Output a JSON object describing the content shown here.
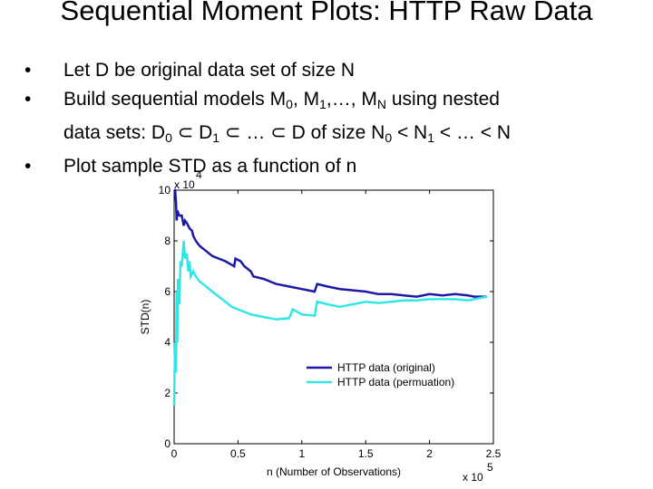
{
  "slide": {
    "title": "Sequential Moment Plots: HTTP Raw Data",
    "bullets": [
      {
        "segments": [
          {
            "t": "Let D be original data set of size N"
          }
        ]
      },
      {
        "segments": [
          {
            "t": "Build sequential models M"
          },
          {
            "t": "0",
            "sub": true
          },
          {
            "t": ", M"
          },
          {
            "t": "1",
            "sub": true
          },
          {
            "t": ",…, M"
          },
          {
            "t": "N",
            "sub": true
          },
          {
            "t": " using nested"
          }
        ]
      },
      {
        "indent": true,
        "segments": [
          {
            "t": "data sets: D"
          },
          {
            "t": "0",
            "sub": true
          },
          {
            "t": " ⊂ D"
          },
          {
            "t": "1",
            "sub": true
          },
          {
            "t": " ⊂ … ⊂ D of size N"
          },
          {
            "t": "0",
            "sub": true
          },
          {
            "t": " < N"
          },
          {
            "t": "1",
            "sub": true
          },
          {
            "t": " < … < N"
          }
        ]
      },
      {
        "segments": [
          {
            "t": "Plot sample STD as a function of n"
          }
        ]
      }
    ]
  },
  "chart_data": {
    "type": "line",
    "xlabel": "n (Number of Observations)",
    "ylabel": "STD(n)",
    "xlim": [
      0,
      250000
    ],
    "ylim": [
      0,
      100000
    ],
    "x_multiplier_label": "x 10",
    "x_multiplier_exp": "5",
    "y_multiplier_label": "x 10",
    "y_multiplier_exp": "4",
    "xticks": [
      {
        "v": 0,
        "label": "0"
      },
      {
        "v": 50000,
        "label": "0.5"
      },
      {
        "v": 100000,
        "label": "1"
      },
      {
        "v": 150000,
        "label": "1.5"
      },
      {
        "v": 200000,
        "label": "2"
      },
      {
        "v": 250000,
        "label": "2.5"
      }
    ],
    "yticks": [
      {
        "v": 0,
        "label": "0"
      },
      {
        "v": 20000,
        "label": "2"
      },
      {
        "v": 40000,
        "label": "4"
      },
      {
        "v": 60000,
        "label": "6"
      },
      {
        "v": 80000,
        "label": "8"
      },
      {
        "v": 100000,
        "label": "10"
      }
    ],
    "legend_position": "lower-right",
    "series": [
      {
        "name": "HTTP data (original)",
        "color": "#1a1aa6",
        "x": [
          0,
          800,
          1500,
          2000,
          2500,
          4000,
          6000,
          7500,
          8500,
          10000,
          12000,
          14000,
          15000,
          17000,
          20000,
          25000,
          30000,
          40000,
          47000,
          48000,
          52000,
          55000,
          60000,
          62000,
          70000,
          80000,
          90000,
          100000,
          110000,
          112000,
          120000,
          130000,
          140000,
          150000,
          160000,
          170000,
          180000,
          190000,
          200000,
          210000,
          220000,
          230000,
          235000,
          240000,
          245000
        ],
        "y": [
          100000,
          100000,
          95000,
          88000,
          92000,
          90000,
          90000,
          86000,
          88000,
          87000,
          85000,
          84000,
          82000,
          80000,
          78000,
          76000,
          74000,
          72000,
          70000,
          73000,
          72000,
          70000,
          68000,
          66000,
          65000,
          63000,
          62000,
          61000,
          60000,
          63000,
          62000,
          61000,
          60500,
          60000,
          59000,
          59000,
          58500,
          58000,
          59000,
          58500,
          59000,
          58500,
          58000,
          58000,
          58000
        ]
      },
      {
        "name": "HTTP data (permuation)",
        "color": "#33e6e6",
        "x": [
          0,
          700,
          1500,
          2000,
          2500,
          3000,
          4000,
          5000,
          6000,
          7500,
          8500,
          10000,
          11000,
          12000,
          13000,
          15000,
          17000,
          20000,
          25000,
          30000,
          35000,
          40000,
          45000,
          50000,
          60000,
          70000,
          80000,
          90000,
          93000,
          100000,
          110000,
          112000,
          120000,
          130000,
          140000,
          150000,
          160000,
          170000,
          180000,
          190000,
          200000,
          210000,
          220000,
          230000,
          240000,
          245000
        ],
        "y": [
          15000,
          40000,
          28000,
          60000,
          40000,
          65000,
          55000,
          72000,
          70000,
          80000,
          73000,
          75000,
          68000,
          72000,
          66000,
          68000,
          66000,
          64000,
          62000,
          60000,
          58000,
          56000,
          54000,
          53000,
          51000,
          50000,
          49000,
          49500,
          53000,
          51000,
          50500,
          56000,
          55000,
          54000,
          55000,
          56000,
          55500,
          56000,
          56500,
          56500,
          57000,
          57000,
          57000,
          56500,
          57500,
          58000
        ]
      }
    ]
  }
}
